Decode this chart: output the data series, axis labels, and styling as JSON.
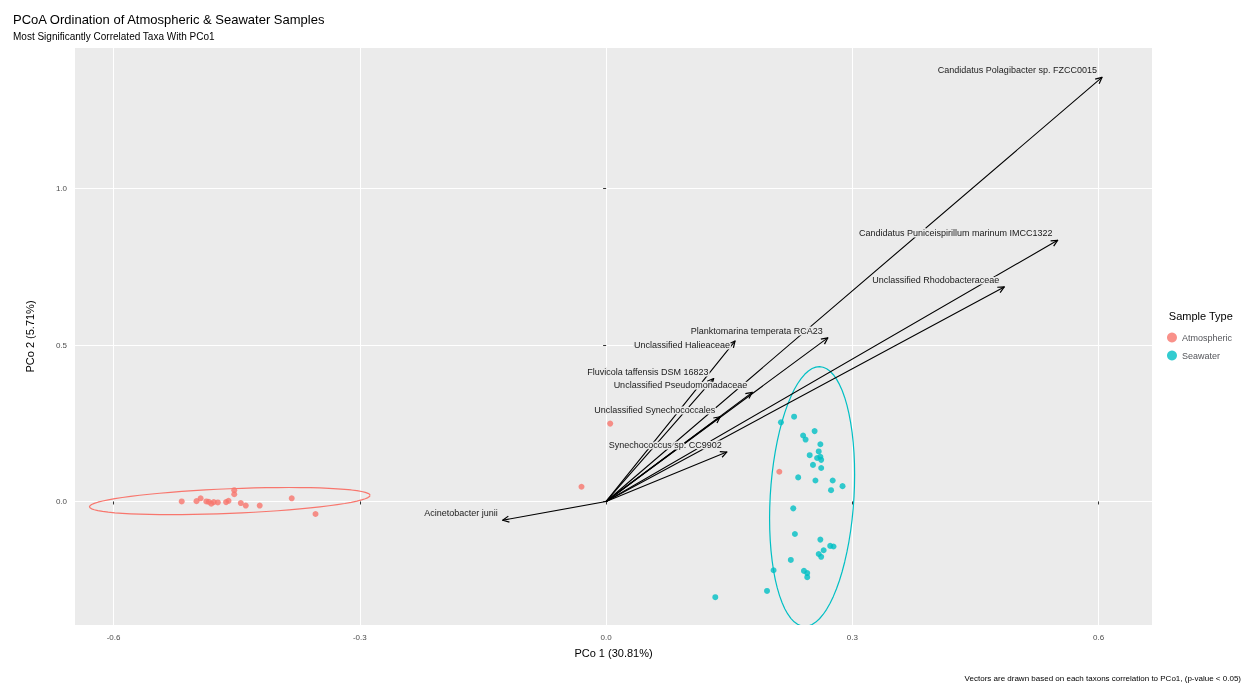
{
  "chart_data": {
    "type": "scatter",
    "title": "PCoA Ordination of Atmospheric & Seawater Samples",
    "subtitle": "Most Significantly Correlated Taxa With PCo1",
    "xlabel": "PCo 1 (30.81%)",
    "ylabel": "PCo 2 (5.71%)",
    "legend_title": "Sample Type",
    "annotations": [
      "Candidatus Polagibacter sp. FZCC0015",
      "Candidatus Puniceispirillum marinum IMCC1322",
      "Unclassified Rhodobacteraceae",
      "Planktomarina temperata RCA23",
      "Unclassified Halieaceae",
      "Fluvicola taffensis DSM 16823",
      "Unclassified Pseudomonadaceae",
      "Unclassified Synechococcales",
      "Synechococcus sp. CC9902",
      "Acinetobacter junii",
      "Vectors are drawn based on each taxons correlation to PCo1, (p-value < 0.05)"
    ],
    "xlim": [
      -0.647,
      0.665
    ],
    "ylim": [
      -0.395,
      1.45
    ],
    "xticks": [
      {
        "value": -0.6,
        "label": "-0.6"
      },
      {
        "value": -0.3,
        "label": "-0.3"
      },
      {
        "value": 0,
        "label": "0.0"
      },
      {
        "value": 0.3,
        "label": "0.3"
      },
      {
        "value": 0.6,
        "label": "0.6"
      }
    ],
    "yticks": [
      {
        "value": 0,
        "label": "0.0"
      },
      {
        "value": 0.5,
        "label": "0.5"
      },
      {
        "value": 1,
        "label": "1.0"
      }
    ],
    "grid": true,
    "legend": "right",
    "marker": "circle",
    "series": [
      {
        "name": "Atmospheric",
        "color": "#f8766d",
        "x": [
          -0.517,
          -0.499,
          -0.494,
          -0.487,
          -0.484,
          -0.481,
          -0.478,
          -0.473,
          -0.463,
          -0.46,
          -0.453,
          -0.453,
          -0.445,
          -0.439,
          -0.422,
          -0.383,
          -0.354,
          -0.03,
          0.005,
          0.211
        ],
        "values": [
          0,
          0.001,
          0.01,
          0,
          -0.001,
          -0.007,
          -0.002,
          -0.003,
          -0.002,
          0.002,
          0.036,
          0.023,
          -0.005,
          -0.013,
          -0.013,
          0.01,
          -0.04,
          0.047,
          0.249,
          0.095
        ]
      },
      {
        "name": "Seawater",
        "color": "#00bfc4",
        "x": [
          0.229,
          0.213,
          0.24,
          0.254,
          0.243,
          0.261,
          0.259,
          0.248,
          0.257,
          0.261,
          0.262,
          0.252,
          0.262,
          0.234,
          0.255,
          0.276,
          0.288,
          0.274,
          0.228,
          0.23,
          0.261,
          0.273,
          0.277,
          0.265,
          0.259,
          0.262,
          0.225,
          0.204,
          0.241,
          0.245,
          0.245,
          0.196,
          0.133
        ],
        "values": [
          0.271,
          0.253,
          0.211,
          0.225,
          0.198,
          0.183,
          0.16,
          0.148,
          0.139,
          0.143,
          0.133,
          0.117,
          0.107,
          0.077,
          0.067,
          0.067,
          0.049,
          0.036,
          -0.022,
          -0.104,
          -0.122,
          -0.142,
          -0.144,
          -0.156,
          -0.168,
          -0.177,
          -0.187,
          -0.22,
          -0.222,
          -0.229,
          -0.242,
          -0.286,
          -0.306
        ]
      }
    ]
  }
}
